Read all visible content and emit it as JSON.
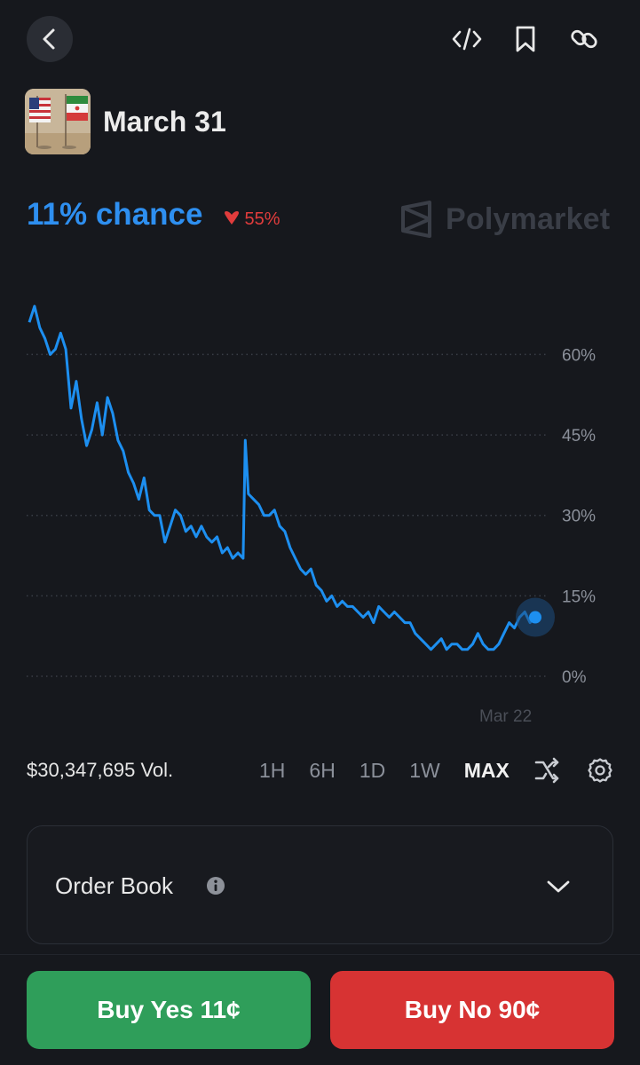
{
  "header": {
    "back_icon": "chevron-left-icon",
    "actions": [
      "code-icon",
      "bookmark-icon",
      "link-icon"
    ]
  },
  "market": {
    "title": "March 31",
    "thumbnail": "us-iran-flags"
  },
  "probability": {
    "chance": "11% chance",
    "change": "55%",
    "change_direction": "down",
    "accent_color": "#2e8ff0",
    "down_color": "#e03c3c"
  },
  "brand": {
    "name": "Polymarket"
  },
  "chart_data": {
    "type": "line",
    "series": [
      {
        "values": [
          [
            0,
            66
          ],
          [
            1,
            69
          ],
          [
            2,
            65
          ],
          [
            3,
            63
          ],
          [
            4,
            60
          ],
          [
            5,
            61
          ],
          [
            6,
            64
          ],
          [
            7,
            61
          ],
          [
            8,
            50
          ],
          [
            9,
            55
          ],
          [
            10,
            48
          ],
          [
            11,
            43
          ],
          [
            12,
            46
          ],
          [
            13,
            51
          ],
          [
            14,
            45
          ],
          [
            15,
            52
          ],
          [
            16,
            49
          ],
          [
            17,
            44
          ],
          [
            18,
            42
          ],
          [
            19,
            38
          ],
          [
            20,
            36
          ],
          [
            21,
            33
          ],
          [
            22,
            37
          ],
          [
            23,
            31
          ],
          [
            24,
            30
          ],
          [
            25,
            30
          ],
          [
            26,
            25
          ],
          [
            27,
            28
          ],
          [
            28,
            31
          ],
          [
            29,
            30
          ],
          [
            30,
            27
          ],
          [
            31,
            28
          ],
          [
            32,
            26
          ],
          [
            33,
            28
          ],
          [
            34,
            26
          ],
          [
            35,
            25
          ],
          [
            36,
            26
          ],
          [
            37,
            23
          ],
          [
            38,
            24
          ],
          [
            39,
            22
          ],
          [
            40,
            23
          ],
          [
            41,
            22
          ],
          [
            41.4,
            44
          ],
          [
            42,
            34
          ],
          [
            43,
            33
          ],
          [
            44,
            32
          ],
          [
            45,
            30
          ],
          [
            46,
            30
          ],
          [
            47,
            31
          ],
          [
            48,
            28
          ],
          [
            49,
            27
          ],
          [
            50,
            24
          ],
          [
            51,
            22
          ],
          [
            52,
            20
          ],
          [
            53,
            19
          ],
          [
            54,
            20
          ],
          [
            55,
            17
          ],
          [
            56,
            16
          ],
          [
            57,
            14
          ],
          [
            58,
            15
          ],
          [
            59,
            13
          ],
          [
            60,
            14
          ],
          [
            61,
            13
          ],
          [
            62,
            13
          ],
          [
            63,
            12
          ],
          [
            64,
            11
          ],
          [
            65,
            12
          ],
          [
            66,
            10
          ],
          [
            67,
            13
          ],
          [
            68,
            12
          ],
          [
            69,
            11
          ],
          [
            70,
            12
          ],
          [
            71,
            11
          ],
          [
            72,
            10
          ],
          [
            73,
            10
          ],
          [
            74,
            8
          ],
          [
            75,
            7
          ],
          [
            76,
            6
          ],
          [
            77,
            5
          ],
          [
            78,
            6
          ],
          [
            79,
            7
          ],
          [
            80,
            5
          ],
          [
            81,
            6
          ],
          [
            82,
            6
          ],
          [
            83,
            5
          ],
          [
            84,
            5
          ],
          [
            85,
            6
          ],
          [
            86,
            8
          ],
          [
            87,
            6
          ],
          [
            88,
            5
          ],
          [
            89,
            5
          ],
          [
            90,
            6
          ],
          [
            91,
            8
          ],
          [
            92,
            10
          ],
          [
            93,
            9
          ],
          [
            94,
            11
          ],
          [
            95,
            12
          ],
          [
            96,
            10
          ],
          [
            97,
            11
          ]
        ]
      }
    ],
    "ylim": [
      0,
      70
    ],
    "y_ticks": [
      0,
      15,
      30,
      45,
      60
    ],
    "y_tick_labels": [
      "0%",
      "15%",
      "30%",
      "45%",
      "60%"
    ],
    "x_tick_labels": [
      "Mar 22"
    ],
    "grid": true,
    "line_color": "#1d8ff0",
    "current_value": 11
  },
  "controls": {
    "volume": "$30,347,695 Vol.",
    "ranges": [
      "1H",
      "6H",
      "1D",
      "1W",
      "MAX"
    ],
    "active_range": "MAX",
    "icons": [
      "shuffle-icon",
      "gear-icon"
    ]
  },
  "order_book": {
    "title": "Order Book",
    "info_icon": "info-icon",
    "expand_icon": "chevron-down-icon"
  },
  "actions": {
    "buy_yes": "Buy Yes 11¢",
    "buy_no": "Buy No 90¢",
    "yes_color": "#2f9e5a",
    "no_color": "#d73333"
  }
}
